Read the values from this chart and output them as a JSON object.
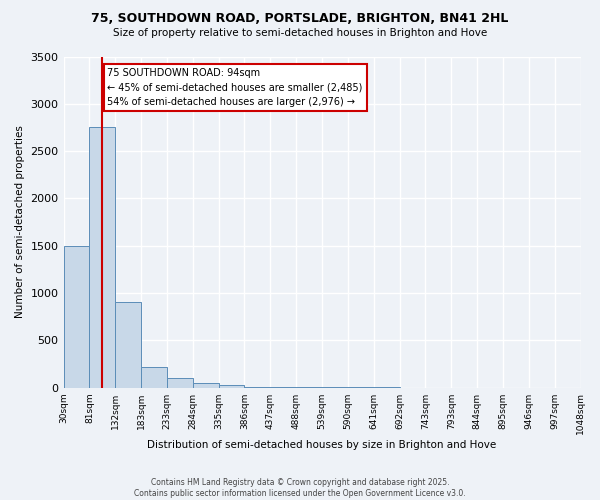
{
  "title_line1": "75, SOUTHDOWN ROAD, PORTSLADE, BRIGHTON, BN41 2HL",
  "title_line2": "Size of property relative to semi-detached houses in Brighton and Hove",
  "xlabel": "Distribution of semi-detached houses by size in Brighton and Hove",
  "ylabel": "Number of semi-detached properties",
  "bar_color": "#c8d8e8",
  "bar_edge_color": "#5b8db8",
  "tick_labels": [
    "30sqm",
    "81sqm",
    "132sqm",
    "183sqm",
    "233sqm",
    "284sqm",
    "335sqm",
    "386sqm",
    "437sqm",
    "488sqm",
    "539sqm",
    "590sqm",
    "641sqm",
    "692sqm",
    "743sqm",
    "793sqm",
    "844sqm",
    "895sqm",
    "946sqm",
    "997sqm",
    "1048sqm"
  ],
  "values": [
    1500,
    2750,
    900,
    220,
    100,
    50,
    30,
    10,
    5,
    3,
    2,
    1,
    1,
    0,
    0,
    0,
    0,
    0,
    0,
    0
  ],
  "ylim": [
    0,
    3500
  ],
  "yticks": [
    0,
    500,
    1000,
    1500,
    2000,
    2500,
    3000,
    3500
  ],
  "property_line_x": 1.0,
  "property_size": "94sqm",
  "pct_smaller": 45,
  "count_smaller": 2485,
  "pct_larger": 54,
  "count_larger": 2976,
  "annotation_box_color": "#ffffff",
  "annotation_box_edge_color": "#cc0000",
  "property_line_color": "#cc0000",
  "footer_line1": "Contains HM Land Registry data © Crown copyright and database right 2025.",
  "footer_line2": "Contains public sector information licensed under the Open Government Licence v3.0.",
  "background_color": "#eef2f7",
  "grid_color": "#ffffff"
}
